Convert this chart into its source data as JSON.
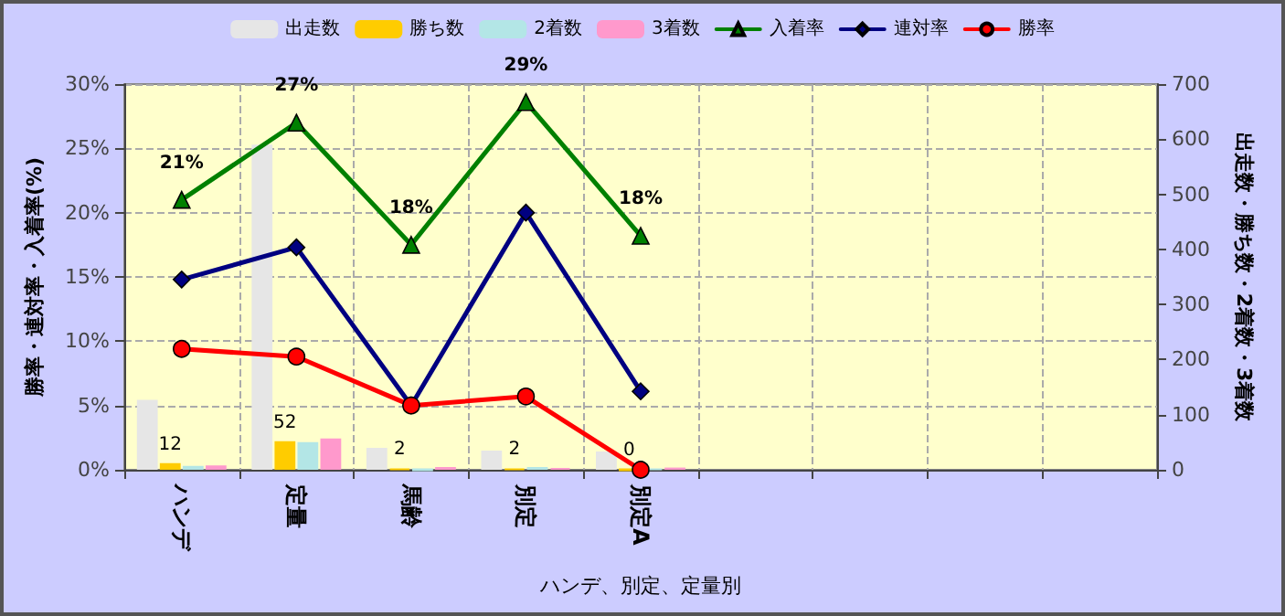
{
  "chart_data": {
    "type": "bar",
    "xlabel": "ハンデ、別定、定量別",
    "ylabel": "勝率・連対率・入着率(%)",
    "y2label": "出走数・勝ち数・2着数・3着数",
    "categories": [
      "ハンデ",
      "定量",
      "馬齢",
      "別定",
      "別定A",
      null,
      null,
      null,
      null
    ],
    "series": [
      {
        "name": "出走数",
        "axis": "y2",
        "color": "#e6e6e6",
        "values": [
          127,
          590,
          40,
          35,
          33,
          null,
          null,
          null,
          null
        ]
      },
      {
        "name": "勝ち数",
        "axis": "y2",
        "color": "#ffcc00",
        "values": [
          12,
          52,
          2,
          2,
          0,
          null,
          null,
          null,
          null
        ],
        "value_labels": [
          "12",
          "52",
          "2",
          "2",
          "0",
          null,
          null,
          null,
          null
        ]
      },
      {
        "name": "2着数",
        "axis": "y2",
        "color": "#b3e6e6",
        "values": [
          7,
          50,
          0,
          5,
          2,
          null,
          null,
          null,
          null
        ]
      },
      {
        "name": "3着数",
        "axis": "y2",
        "color": "#ff99cc",
        "values": [
          8,
          57,
          5,
          3,
          4,
          null,
          null,
          null,
          null
        ]
      },
      {
        "name": "入着率",
        "type": "line",
        "axis": "y",
        "color": "#008000",
        "marker": "triangle",
        "values": [
          21.0,
          27.0,
          17.5,
          28.6,
          18.2,
          null,
          null,
          null,
          null
        ],
        "value_labels": [
          "21%",
          "27%",
          "18%",
          "29%",
          "18%",
          null,
          null,
          null,
          null
        ]
      },
      {
        "name": "連対率",
        "type": "line",
        "axis": "y",
        "color": "#000080",
        "marker": "diamond",
        "values": [
          14.8,
          17.3,
          5.0,
          20.0,
          6.1,
          null,
          null,
          null,
          null
        ]
      },
      {
        "name": "勝率",
        "type": "line",
        "axis": "y",
        "color": "#ff0000",
        "marker": "circle",
        "values": [
          9.4,
          8.8,
          5.0,
          5.7,
          0,
          null,
          null,
          null,
          null
        ]
      }
    ],
    "ylim": [
      0,
      30
    ],
    "yticks": [
      {
        "value": 0,
        "label": "0%"
      },
      {
        "value": 5,
        "label": "5%"
      },
      {
        "value": 10,
        "label": "10%"
      },
      {
        "value": 15,
        "label": "15%"
      },
      {
        "value": 20,
        "label": "20%"
      },
      {
        "value": 25,
        "label": "25%"
      },
      {
        "value": 30,
        "label": "30%"
      }
    ],
    "y2lim": [
      0,
      700
    ],
    "y2ticks": [
      0,
      100,
      200,
      300,
      400,
      500,
      600,
      700
    ],
    "grid": true,
    "legend": "top"
  }
}
